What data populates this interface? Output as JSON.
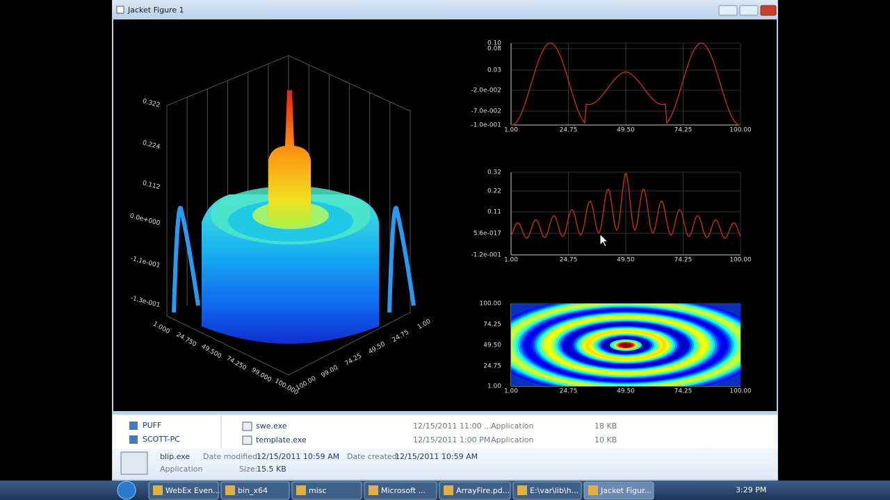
{
  "window": {
    "title": "Jacket Figure 1"
  },
  "surface_plot": {
    "z_ticks": [
      "0.322",
      "0.224",
      "0.112",
      "0.0e+000",
      "-1.1e-001",
      "-1.3e-001"
    ],
    "x_ticks": [
      "1.000",
      "24.750",
      "49.500",
      "74.250",
      "99.000",
      "100.000"
    ],
    "y_ticks": [
      "1.00",
      "24.75",
      "49.50",
      "74.25",
      "99.00",
      "100.00"
    ]
  },
  "line_plot_1": {
    "y_ticks": [
      "0.10",
      "0.08",
      "0.03",
      "-2.0e-002",
      "-7.0e-002",
      "-1.0e-001"
    ],
    "x_ticks": [
      "1.00",
      "24.75",
      "49.50",
      "74.25",
      "100.00"
    ]
  },
  "line_plot_2": {
    "y_ticks": [
      "0.32",
      "0.22",
      "0.11",
      "5.6e-017",
      "-1.2e-001"
    ],
    "x_ticks": [
      "1.00",
      "24.75",
      "49.50",
      "74.25",
      "100.00"
    ]
  },
  "heatmap": {
    "y_ticks": [
      "100.00",
      "74.25",
      "49.50",
      "24.75",
      "1.00"
    ],
    "x_ticks": [
      "1.00",
      "24.75",
      "49.50",
      "74.25",
      "100.00"
    ]
  },
  "explorer": {
    "nav": [
      "PUFF",
      "SCOTT-PC"
    ],
    "files": [
      {
        "name": "swe.exe",
        "modified": "12/15/2011 11:00 ...",
        "type": "Application",
        "size": "18 KB"
      },
      {
        "name": "template.exe",
        "modified": "12/15/2011 1:00 PM",
        "type": "Application",
        "size": "10 KB"
      }
    ],
    "details": {
      "name": "blip.exe",
      "type": "Application",
      "modified_label": "Date modified:",
      "modified": "12/15/2011 10:59 AM",
      "created_label": "Date created:",
      "created": "12/15/2011 10:59 AM",
      "size_label": "Size:",
      "size": "15.5 KB"
    }
  },
  "taskbar": {
    "items": [
      "WebEx Even...",
      "bin_x64",
      "misc",
      "Microsoft ...",
      "ArrayFire.pd...",
      "E:\\var\\lib\\h...",
      "Jacket Figur..."
    ],
    "clock": "3:29 PM"
  }
}
